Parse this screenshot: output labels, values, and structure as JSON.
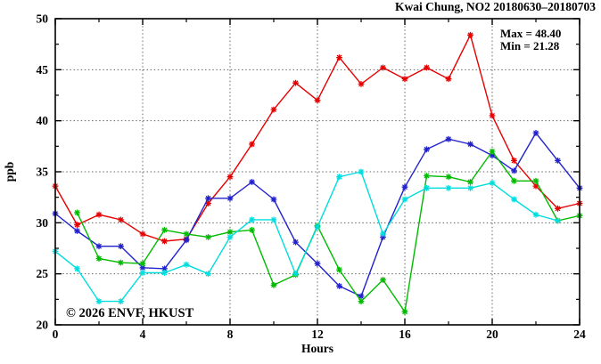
{
  "title": "Kwai Chung, NO2 20180630–20180703",
  "annotations": {
    "max_label": "Max = 48.40",
    "min_label": "Min = 21.28"
  },
  "watermark": "© 2026 ENVF, HKUST",
  "colors": {
    "axis": "#000000",
    "grid": "#666666",
    "watermark": "#d4d4d4",
    "series_red": "#e60000",
    "series_blue": "#2222cc",
    "series_green": "#00bb00",
    "series_cyan": "#00dddd"
  },
  "chart_data": {
    "type": "line",
    "title": "Kwai Chung, NO2 20180630–20180703",
    "xlabel": "Hours",
    "ylabel": "ppb",
    "xlim": [
      0,
      24
    ],
    "ylim": [
      20,
      50
    ],
    "x_major_ticks": [
      0,
      4,
      8,
      12,
      16,
      20,
      24
    ],
    "x_minor_step": 2,
    "y_major_ticks": [
      20,
      25,
      30,
      35,
      40,
      45,
      50
    ],
    "y_minor_step": 2.5,
    "grid": true,
    "legend": "none",
    "max": 48.4,
    "min": 21.28,
    "series": [
      {
        "name": "red",
        "color_key": "series_red",
        "x": [
          0,
          1,
          2,
          3,
          4,
          5,
          6,
          7,
          8,
          9,
          10,
          11,
          12,
          13,
          14,
          15,
          16,
          17,
          18,
          19,
          20,
          21,
          22,
          23,
          24
        ],
        "values": [
          33.6,
          29.8,
          30.8,
          30.3,
          28.9,
          28.2,
          28.4,
          31.9,
          34.5,
          37.7,
          41.1,
          43.7,
          42.0,
          46.2,
          43.6,
          45.2,
          44.1,
          45.2,
          44.1,
          48.4,
          40.5,
          36.1,
          33.6,
          31.4,
          31.9
        ]
      },
      {
        "name": "blue",
        "color_key": "series_blue",
        "x": [
          0,
          1,
          2,
          3,
          4,
          5,
          6,
          7,
          8,
          9,
          10,
          11,
          12,
          13,
          14,
          15,
          16,
          17,
          18,
          19,
          20,
          21,
          22,
          23,
          24
        ],
        "values": [
          30.9,
          29.2,
          27.7,
          27.7,
          25.6,
          25.5,
          28.3,
          32.4,
          32.4,
          34.0,
          32.3,
          28.1,
          26.0,
          23.8,
          22.8,
          28.6,
          33.5,
          37.2,
          38.2,
          37.7,
          36.6,
          35.1,
          38.8,
          36.1,
          33.4
        ]
      },
      {
        "name": "green",
        "color_key": "series_green",
        "x": [
          1,
          2,
          3,
          4,
          5,
          6,
          7,
          8,
          9,
          10,
          11,
          12,
          13,
          14,
          15,
          16,
          17,
          18,
          19,
          20,
          21,
          22,
          23,
          24
        ],
        "values": [
          31.0,
          26.5,
          26.1,
          26.0,
          29.3,
          28.9,
          28.6,
          29.1,
          29.3,
          23.9,
          24.9,
          29.7,
          25.4,
          22.3,
          24.4,
          21.28,
          34.6,
          34.5,
          34.0,
          37.0,
          34.1,
          34.1,
          30.2,
          30.7
        ]
      },
      {
        "name": "cyan",
        "color_key": "series_cyan",
        "x": [
          0,
          1,
          2,
          3,
          4,
          5,
          6,
          7,
          8,
          9,
          10,
          11,
          12,
          13,
          14,
          15,
          16,
          17,
          18,
          19,
          20,
          21,
          22,
          23
        ],
        "values": [
          27.2,
          25.5,
          22.3,
          22.3,
          25.1,
          25.1,
          25.9,
          25.0,
          28.6,
          30.3,
          30.3,
          25.0,
          29.6,
          34.5,
          35.0,
          28.9,
          32.3,
          33.4,
          33.4,
          33.4,
          33.9,
          32.3,
          30.8,
          30.2
        ]
      }
    ]
  }
}
